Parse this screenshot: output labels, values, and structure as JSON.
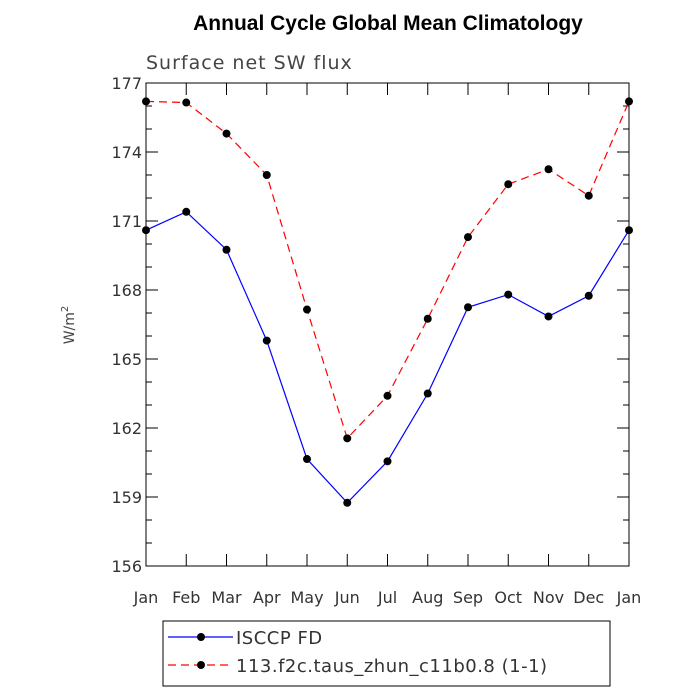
{
  "chart_data": {
    "type": "line",
    "title": "Annual Cycle Global Mean Climatology",
    "subtitle": "Surface net SW flux",
    "xlabel": "",
    "ylabel_base": "W/m",
    "ylabel_superscript": "2",
    "categories": [
      "Jan",
      "Feb",
      "Mar",
      "Apr",
      "May",
      "Jun",
      "Jul",
      "Aug",
      "Sep",
      "Oct",
      "Nov",
      "Dec",
      "Jan"
    ],
    "ylim": [
      156,
      177
    ],
    "yticks": [
      156,
      159,
      162,
      165,
      168,
      171,
      174,
      177
    ],
    "grid": false,
    "legend_position": "bottom",
    "series": [
      {
        "name": "ISCCP FD",
        "color": "#0000ff",
        "dash": "solid",
        "marker": "filled-circle",
        "values": [
          170.6,
          171.4,
          169.75,
          165.8,
          160.65,
          158.75,
          160.55,
          163.5,
          167.25,
          167.8,
          166.85,
          167.75,
          170.6
        ]
      },
      {
        "name": "113.f2c.taus_zhun_c11b0.8 (1-1)",
        "color": "#ff0000",
        "dash": "dashed",
        "marker": "filled-circle",
        "values": [
          176.2,
          176.15,
          174.8,
          173.0,
          167.15,
          161.55,
          163.4,
          166.75,
          170.3,
          172.6,
          173.25,
          172.1,
          176.2
        ]
      }
    ]
  }
}
